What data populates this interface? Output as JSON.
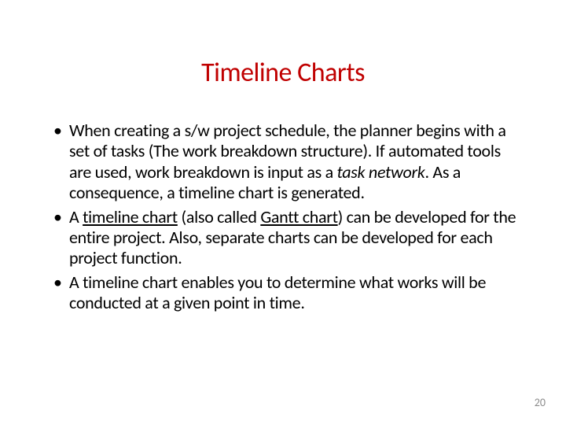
{
  "slide": {
    "title": "Timeline Charts",
    "title_color": "#c00000",
    "title_fontsize": 34,
    "background_color": "#ffffff",
    "text_color": "#000000",
    "body_fontsize": 22,
    "bullets": [
      {
        "pre": "When creating a s/w project schedule, the planner begins with a set of tasks (The work breakdown structure). If automated tools are used, work breakdown is input as a ",
        "em1": "task network",
        "post": ". As a consequence, a timeline chart is generated."
      },
      {
        "pre": "A ",
        "u1": "timeline chart",
        "mid1": " (also called ",
        "u2": "Gantt chart",
        "post": ") can be developed for the entire project. Also, separate charts can be developed for each project function."
      },
      {
        "pre": "A timeline chart enables you to determine what works will be conducted at a given point in time."
      }
    ],
    "page_number": "20",
    "page_number_color": "#8c8c8c",
    "page_number_fontsize": 14
  }
}
